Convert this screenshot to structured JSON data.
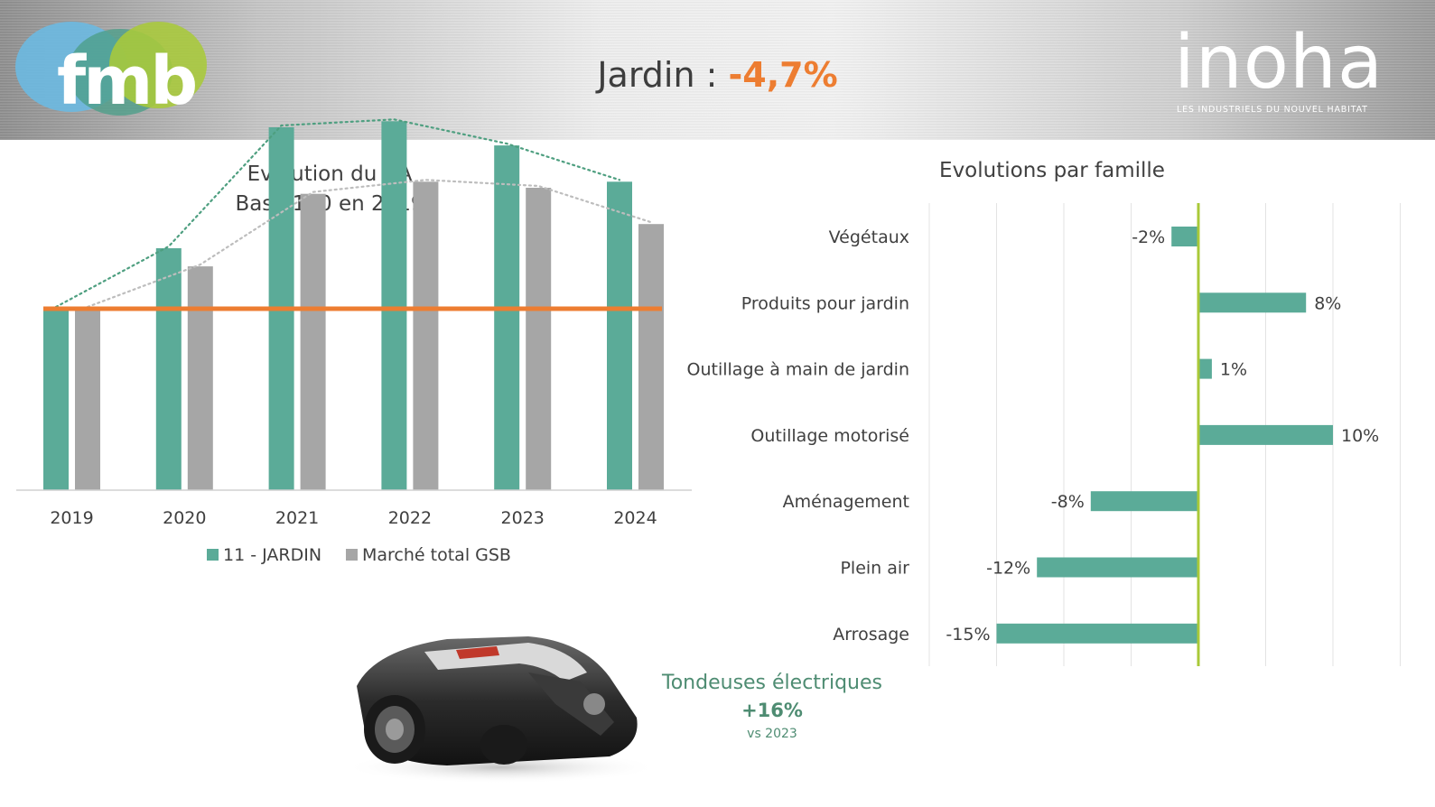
{
  "header": {
    "title_prefix": "Jardin : ",
    "title_value": "-4,7%",
    "logo_left": {
      "name": "fmb-logo",
      "text": "fmb"
    },
    "logo_right": {
      "name": "inoha-logo",
      "text": "inoha",
      "subtitle": "LES INDUSTRIELS DU NOUVEL HABITAT"
    }
  },
  "chart_data": [
    {
      "type": "bar",
      "title": "Evolution  du CA",
      "subtitle": "Base 100 en 2019",
      "categories": [
        "2019",
        "2020",
        "2021",
        "2022",
        "2023",
        "2024"
      ],
      "series": [
        {
          "name": "11 - JARDIN",
          "color": "#5bab98",
          "values": [
            100,
            110,
            130,
            131,
            127,
            121
          ]
        },
        {
          "name": "Marché total GSB",
          "color": "#a6a6a6",
          "values": [
            100,
            107,
            119,
            121,
            120,
            114
          ]
        }
      ],
      "reference_line": {
        "value": 100,
        "color": "#ed7d31"
      },
      "trendlines": true,
      "legend": "bottom",
      "grid": false
    },
    {
      "type": "bar",
      "orientation": "horizontal",
      "title": "Evolutions par famille",
      "categories": [
        "Végétaux",
        "Produits pour jardin",
        "Outillage à main de jardin",
        "Outillage motorisé",
        "Aménagement",
        "Plein air",
        "Arrosage"
      ],
      "values": [
        -2,
        8,
        1,
        10,
        -8,
        -12,
        -15
      ],
      "value_labels": [
        "-2%",
        "8%",
        "1%",
        "10%",
        "-8%",
        "-12%",
        "-15%"
      ],
      "bar_color": "#5bab98",
      "zero_line_color": "#a9c938",
      "grid": true
    }
  ],
  "highlight": {
    "name": "Tondeuses électriques",
    "value": "+16%",
    "comparison": "vs 2023",
    "image": "robot-lawn-mower"
  }
}
